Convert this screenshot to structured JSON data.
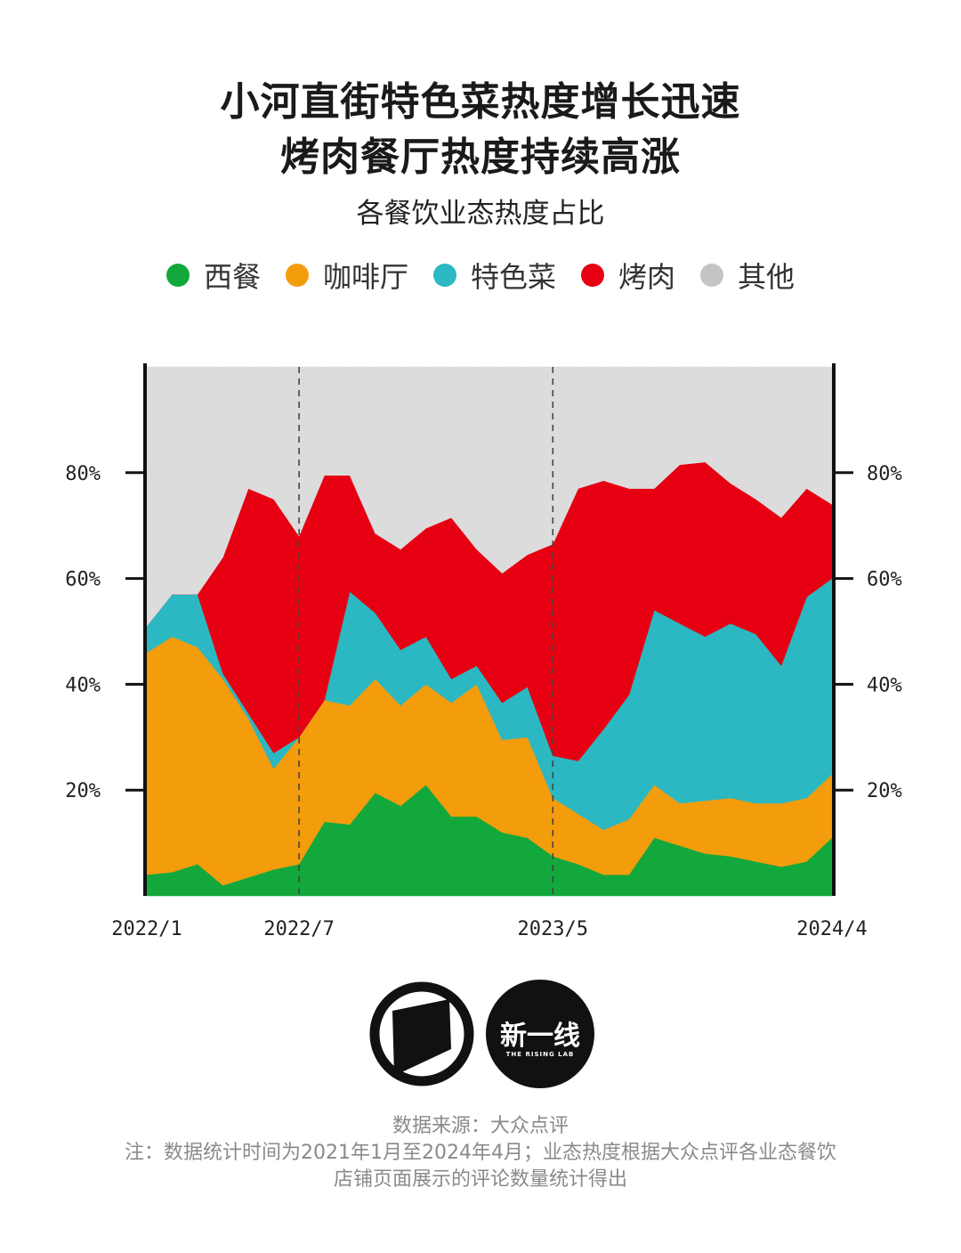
{
  "title_line1": "小河直街特色菜热度增长迅速",
  "title_line2": "烤肉餐厅热度持续高涨",
  "subtitle": "各餐饮业态热度占比",
  "legend": [
    {
      "label": "西餐",
      "color": "#12a83c"
    },
    {
      "label": "咖啡厅",
      "color": "#f39c0c"
    },
    {
      "label": "特色菜",
      "color": "#2bb8c2"
    },
    {
      "label": "烤肉",
      "color": "#e60012"
    },
    {
      "label": "其他",
      "color": "#c4c4c4"
    }
  ],
  "chart_data": {
    "type": "area",
    "stacked": true,
    "x": [
      "2022/1",
      "2022/2",
      "2022/3",
      "2022/4",
      "2022/5",
      "2022/6",
      "2022/7",
      "2022/8",
      "2022/9",
      "2022/10",
      "2022/11",
      "2022/12",
      "2023/1",
      "2023/2",
      "2023/3",
      "2023/4",
      "2023/5",
      "2023/6",
      "2023/7",
      "2023/8",
      "2023/9",
      "2023/10",
      "2023/11",
      "2023/12",
      "2024/1",
      "2024/2",
      "2024/3",
      "2024/4"
    ],
    "x_tick_labels": [
      {
        "label": "2022/1",
        "index": 0
      },
      {
        "label": "2022/7",
        "index": 6
      },
      {
        "label": "2023/5",
        "index": 16
      },
      {
        "label": "2024/4",
        "index": 27
      }
    ],
    "dashed_lines_at": [
      "2022/7",
      "2023/5"
    ],
    "y_ticks": [
      "20%",
      "40%",
      "60%",
      "80%"
    ],
    "y_tick_values": [
      20,
      40,
      60,
      80
    ],
    "ylim": [
      0,
      100
    ],
    "background_color": "#dcdcdc",
    "series": [
      {
        "name": "西餐",
        "color": "#12a83c",
        "values": [
          4,
          4.5,
          6,
          2,
          3.5,
          5,
          6,
          14,
          13.5,
          19.5,
          17,
          21,
          15,
          15,
          12,
          11,
          7.5,
          6,
          4,
          4,
          11,
          9.5,
          8,
          7.5,
          6.5,
          5.5,
          6.5,
          11
        ]
      },
      {
        "name": "咖啡厅",
        "color": "#f39c0c",
        "values": [
          42,
          44.5,
          41,
          39,
          30,
          19,
          24,
          23,
          22.5,
          21.5,
          19,
          19,
          21.5,
          25,
          17.5,
          19,
          11,
          9.5,
          8.5,
          10.5,
          10,
          8,
          10,
          11,
          11,
          12,
          12,
          12
        ]
      },
      {
        "name": "特色菜",
        "color": "#2bb8c2",
        "values": [
          5,
          8,
          10,
          1,
          1,
          3,
          0,
          0,
          21.5,
          12.5,
          10.5,
          9,
          4.5,
          3.5,
          7,
          9.5,
          8,
          10,
          19,
          23.5,
          33,
          34,
          31,
          33,
          32,
          26,
          38,
          37
        ]
      },
      {
        "name": "烤肉",
        "color": "#e60012",
        "values": [
          0,
          0,
          0,
          22,
          42.5,
          48,
          38,
          42.5,
          22,
          15,
          19,
          20.5,
          30.5,
          22,
          24.5,
          25,
          40,
          51.5,
          47,
          39,
          23,
          30,
          33,
          26.5,
          25.5,
          28,
          20.5,
          14
        ]
      },
      {
        "name": "其他",
        "color": "#dcdcdc",
        "values": [
          49,
          43,
          43,
          36,
          23,
          25,
          32,
          20.5,
          20.5,
          31.5,
          34.5,
          30.5,
          28.5,
          34.5,
          39,
          35.5,
          33.5,
          23,
          21.5,
          23,
          23,
          18.5,
          18,
          22,
          25,
          28.5,
          23,
          26
        ]
      }
    ]
  },
  "logo_primary_icon": "black-parallelogram-circle-logo",
  "logo_secondary_cn": "新一线",
  "logo_secondary_en": "THE RISING LAB",
  "footer_line1": "数据来源：大众点评",
  "footer_line2": "注：数据统计时间为2021年1月至2024年4月；业态热度根据大众点评各业态餐饮",
  "footer_line3": "店铺页面展示的评论数量统计得出"
}
